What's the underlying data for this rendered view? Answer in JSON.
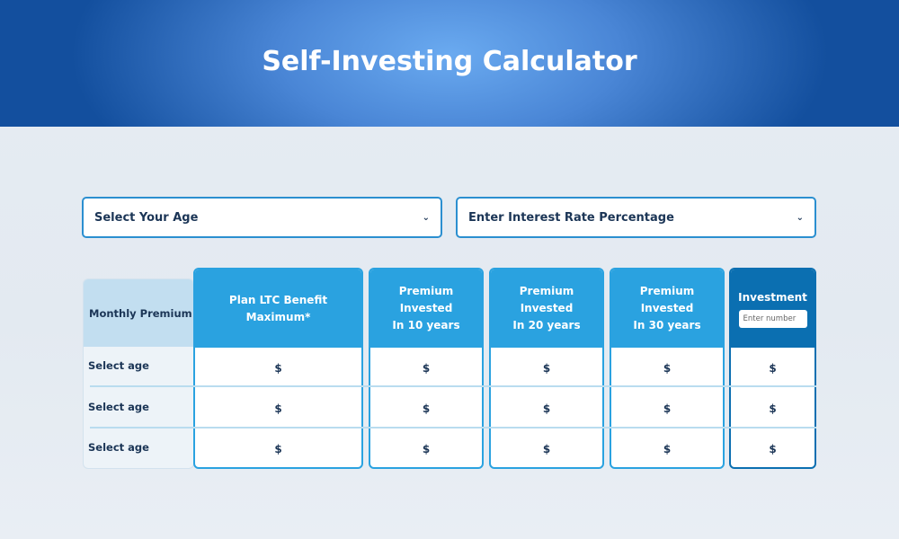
{
  "header": {
    "title": "Self-Investing Calculator"
  },
  "controls": {
    "age_select": "Select Your Age",
    "rate_select": "Enter Interest Rate Percentage"
  },
  "table": {
    "row_header": "Monthly Premium",
    "row_labels": [
      "Select age",
      "Select age",
      "Select age"
    ],
    "columns": [
      {
        "title": "Plan LTC Benefit Maximum*",
        "sub": "",
        "values": [
          "$",
          "$",
          "$"
        ]
      },
      {
        "title": "Premium Invested",
        "sub": "In 10 years",
        "values": [
          "$",
          "$",
          "$"
        ]
      },
      {
        "title": "Premium Invested",
        "sub": "In 20 years",
        "values": [
          "$",
          "$",
          "$"
        ]
      },
      {
        "title": "Premium Invested",
        "sub": "In 30 years",
        "values": [
          "$",
          "$",
          "$"
        ]
      },
      {
        "title": "Investment",
        "sub": "",
        "placeholder": "Enter number",
        "values": [
          "$",
          "$",
          "$"
        ]
      }
    ]
  },
  "colors": {
    "accent": "#2aa2e0",
    "dark_accent": "#0b6fb1",
    "text": "#1b3556"
  }
}
